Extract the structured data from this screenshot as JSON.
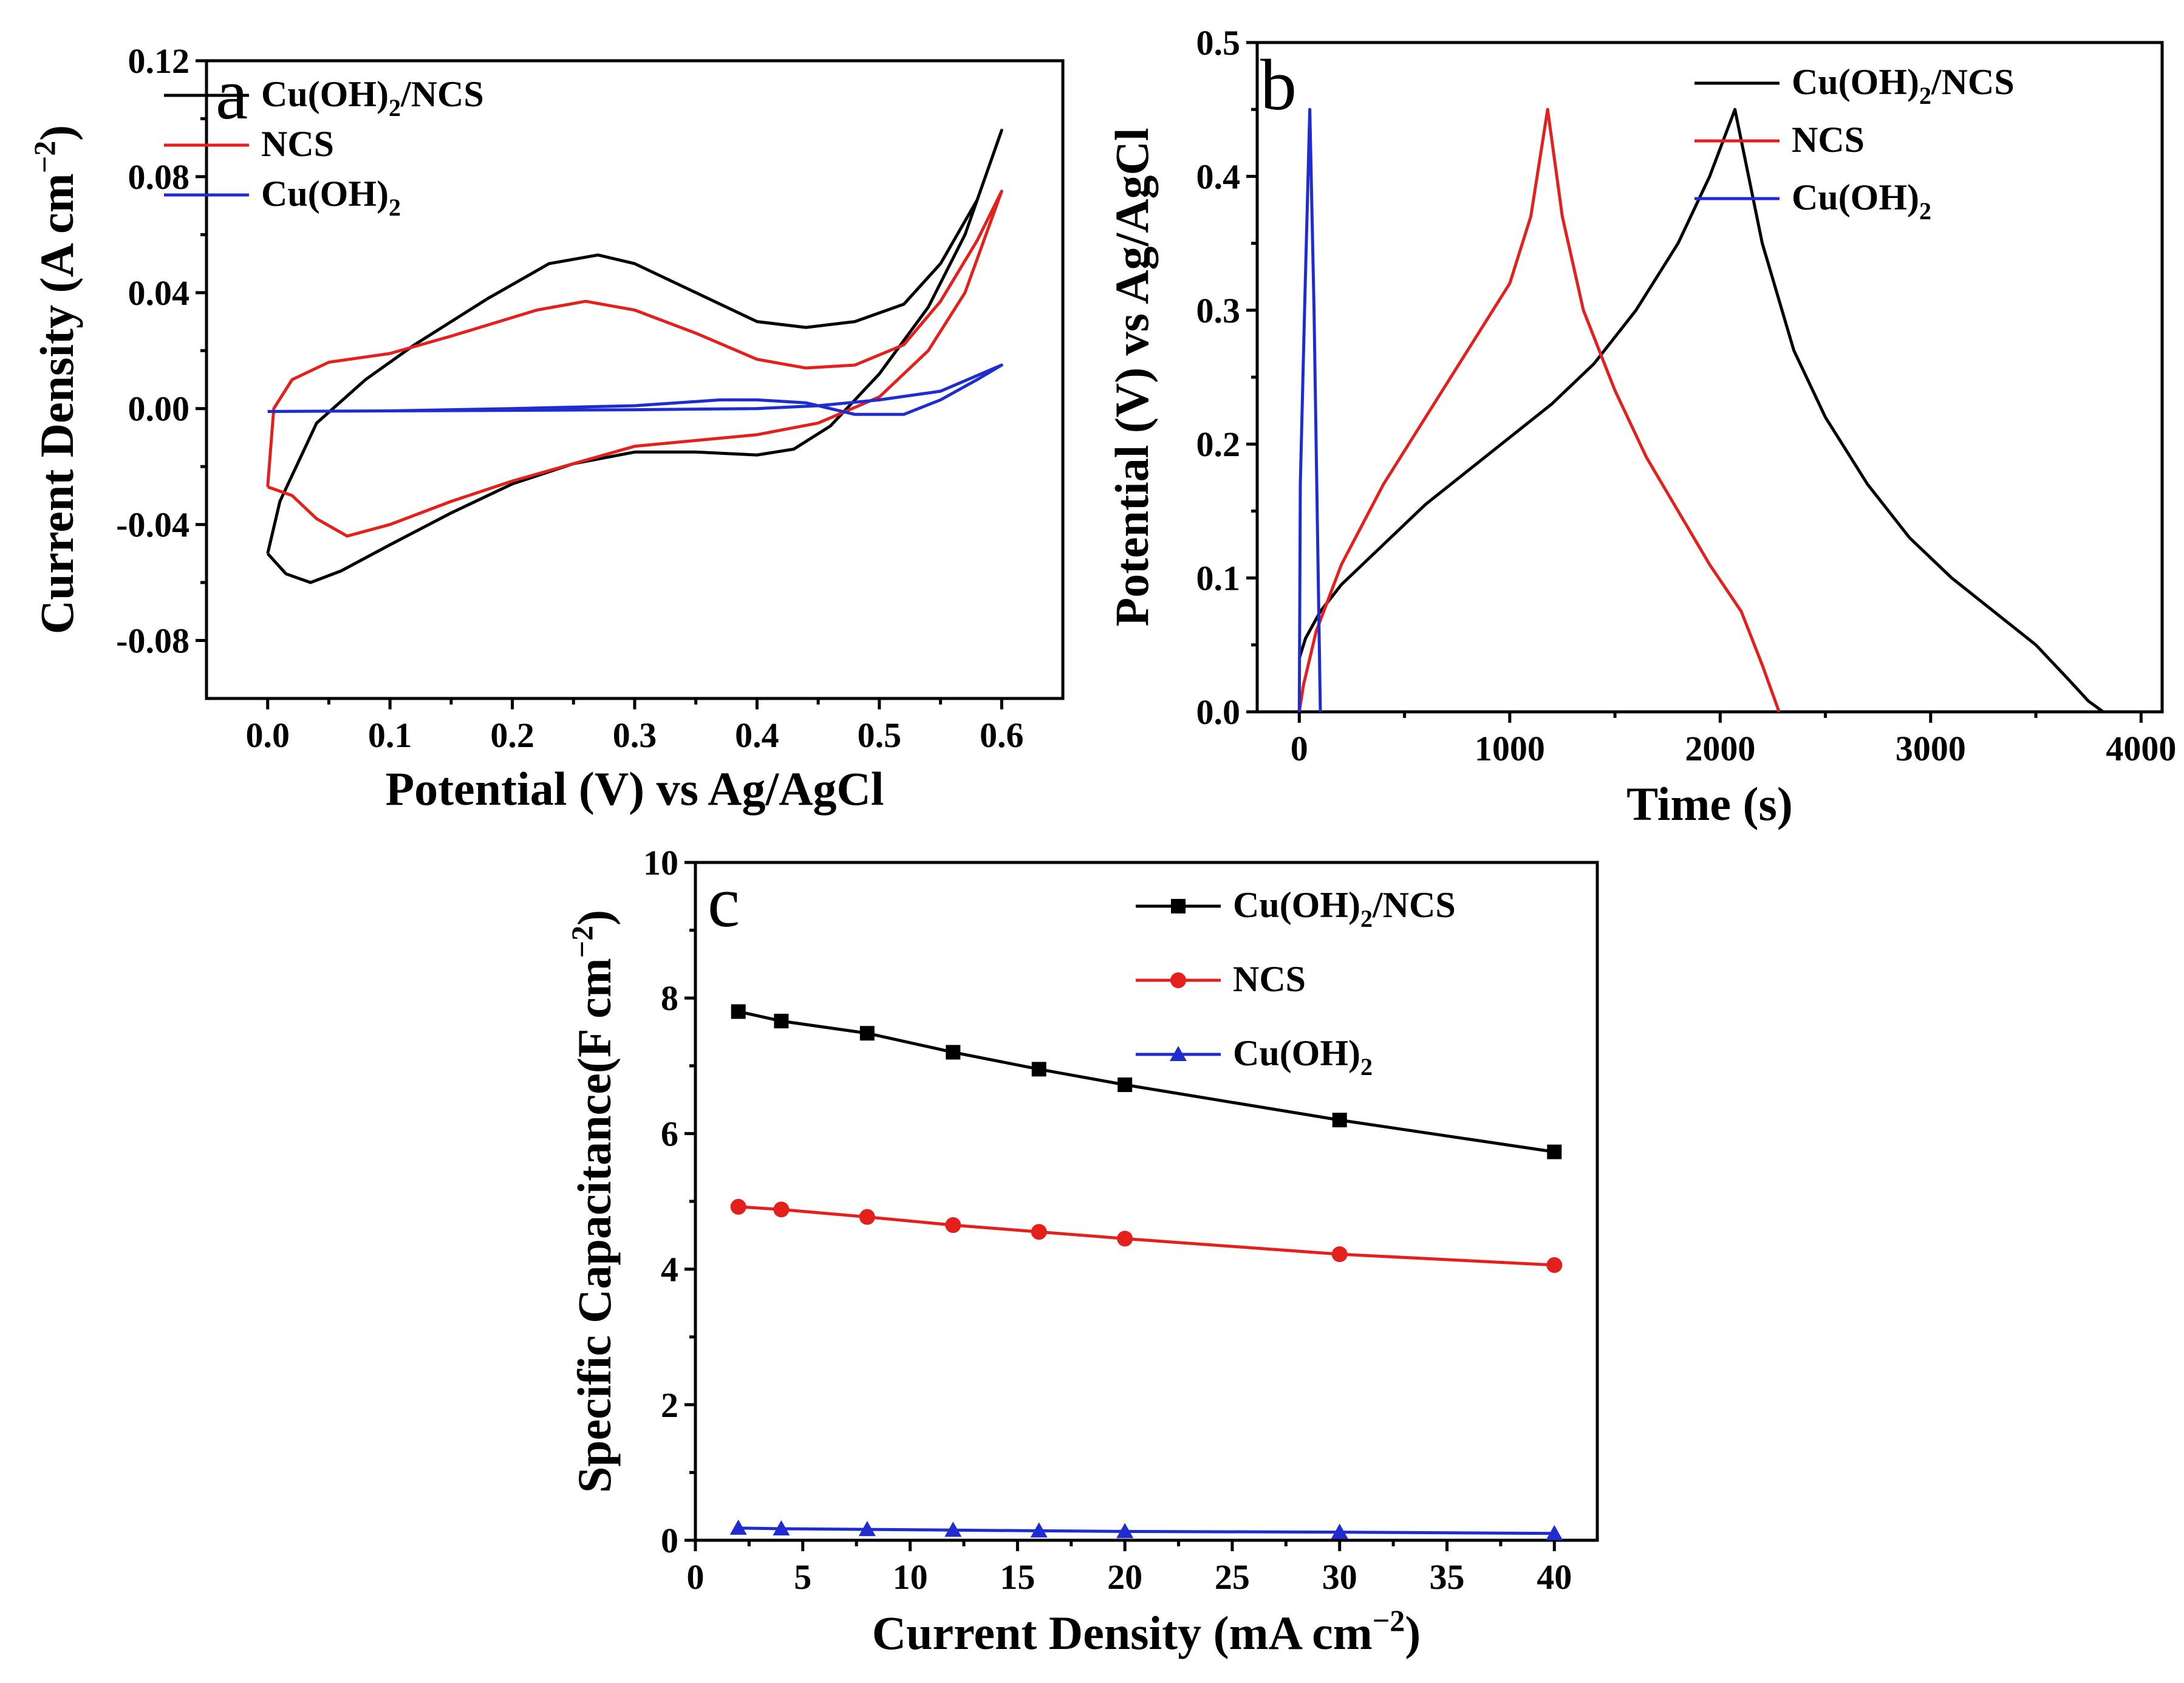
{
  "figure": {
    "description_letters": [
      "a",
      "b",
      "c"
    ]
  },
  "chart_data": [
    {
      "panel": "a",
      "type": "line",
      "title": "",
      "xlabel": "Potential (V) vs Ag/AgCl",
      "ylabel": "Current Density (A cm",
      "ylabel_sup": "−2",
      "ylabel_end": ")",
      "xlim": [
        -0.05,
        0.65
      ],
      "ylim": [
        -0.1,
        0.12
      ],
      "xticks": [
        0.0,
        0.1,
        0.2,
        0.3,
        0.4,
        0.5,
        0.6
      ],
      "xtick_labels": [
        "0.0",
        "0.1",
        "0.2",
        "0.3",
        "0.4",
        "0.5",
        "0.6"
      ],
      "yticks": [
        -0.08,
        -0.04,
        0.0,
        0.04,
        0.08,
        0.12
      ],
      "ytick_labels": [
        "-0.08",
        "-0.04",
        "0.00",
        "0.04",
        "0.08",
        "0.12"
      ],
      "legend": "top-left",
      "series": [
        {
          "name": "Cu(OH)2/NCS",
          "label_main": "Cu(OH)",
          "label_sub": "2",
          "label_tail": "/NCS",
          "color": "#000000",
          "points": [
            [
              0.0,
              -0.05
            ],
            [
              0.015,
              -0.057
            ],
            [
              0.035,
              -0.06
            ],
            [
              0.06,
              -0.056
            ],
            [
              0.1,
              -0.047
            ],
            [
              0.15,
              -0.036
            ],
            [
              0.2,
              -0.026
            ],
            [
              0.25,
              -0.019
            ],
            [
              0.3,
              -0.015
            ],
            [
              0.35,
              -0.015
            ],
            [
              0.4,
              -0.016
            ],
            [
              0.43,
              -0.014
            ],
            [
              0.46,
              -0.006
            ],
            [
              0.5,
              0.012
            ],
            [
              0.54,
              0.035
            ],
            [
              0.57,
              0.06
            ],
            [
              0.6,
              0.096
            ],
            [
              0.58,
              0.072
            ],
            [
              0.55,
              0.05
            ],
            [
              0.52,
              0.036
            ],
            [
              0.48,
              0.03
            ],
            [
              0.44,
              0.028
            ],
            [
              0.4,
              0.03
            ],
            [
              0.35,
              0.04
            ],
            [
              0.3,
              0.05
            ],
            [
              0.27,
              0.053
            ],
            [
              0.23,
              0.05
            ],
            [
              0.18,
              0.038
            ],
            [
              0.12,
              0.022
            ],
            [
              0.08,
              0.01
            ],
            [
              0.04,
              -0.005
            ],
            [
              0.01,
              -0.032
            ],
            [
              0.0,
              -0.05
            ]
          ]
        },
        {
          "name": "NCS",
          "label_main": "NCS",
          "label_sub": "",
          "label_tail": "",
          "color": "#e3201b",
          "points": [
            [
              0.0,
              -0.027
            ],
            [
              0.02,
              -0.03
            ],
            [
              0.04,
              -0.038
            ],
            [
              0.065,
              -0.044
            ],
            [
              0.1,
              -0.04
            ],
            [
              0.15,
              -0.032
            ],
            [
              0.2,
              -0.025
            ],
            [
              0.25,
              -0.019
            ],
            [
              0.3,
              -0.013
            ],
            [
              0.35,
              -0.011
            ],
            [
              0.4,
              -0.009
            ],
            [
              0.45,
              -0.005
            ],
            [
              0.5,
              0.004
            ],
            [
              0.54,
              0.02
            ],
            [
              0.57,
              0.04
            ],
            [
              0.6,
              0.075
            ],
            [
              0.58,
              0.058
            ],
            [
              0.55,
              0.037
            ],
            [
              0.52,
              0.022
            ],
            [
              0.48,
              0.015
            ],
            [
              0.44,
              0.014
            ],
            [
              0.4,
              0.017
            ],
            [
              0.35,
              0.026
            ],
            [
              0.3,
              0.034
            ],
            [
              0.26,
              0.037
            ],
            [
              0.22,
              0.034
            ],
            [
              0.15,
              0.025
            ],
            [
              0.1,
              0.019
            ],
            [
              0.05,
              0.016
            ],
            [
              0.02,
              0.01
            ],
            [
              0.005,
              0.0
            ],
            [
              0.0,
              -0.027
            ]
          ]
        },
        {
          "name": "Cu(OH)2",
          "label_main": "Cu(OH)",
          "label_sub": "2",
          "label_tail": "",
          "color": "#1f2ccf",
          "points": [
            [
              0.0,
              -0.001
            ],
            [
              0.1,
              -0.0008
            ],
            [
              0.2,
              -0.0006
            ],
            [
              0.3,
              -0.0004
            ],
            [
              0.4,
              0.0
            ],
            [
              0.45,
              0.001
            ],
            [
              0.5,
              0.003
            ],
            [
              0.55,
              0.006
            ],
            [
              0.6,
              0.015
            ],
            [
              0.58,
              0.01
            ],
            [
              0.55,
              0.003
            ],
            [
              0.52,
              -0.002
            ],
            [
              0.48,
              -0.002
            ],
            [
              0.44,
              0.002
            ],
            [
              0.4,
              0.003
            ],
            [
              0.37,
              0.003
            ],
            [
              0.3,
              0.001
            ],
            [
              0.2,
              0.0
            ],
            [
              0.1,
              -0.0008
            ],
            [
              0.0,
              -0.001
            ]
          ]
        }
      ]
    },
    {
      "panel": "b",
      "type": "line",
      "title": "",
      "xlabel": "Time (s)",
      "ylabel": "Potential (V) vs Ag/AgCl",
      "xlim": [
        -200,
        4100
      ],
      "ylim": [
        0.0,
        0.5
      ],
      "xticks": [
        0,
        1000,
        2000,
        3000,
        4000
      ],
      "xtick_labels": [
        "0",
        "1000",
        "2000",
        "3000",
        "4000"
      ],
      "yticks": [
        0.0,
        0.1,
        0.2,
        0.3,
        0.4,
        0.5
      ],
      "ytick_labels": [
        "0.0",
        "0.1",
        "0.2",
        "0.3",
        "0.4",
        "0.5"
      ],
      "legend": "top-right",
      "series": [
        {
          "name": "Cu(OH)2/NCS",
          "label_main": "Cu(OH)",
          "label_sub": "2",
          "label_tail": "/NCS",
          "color": "#000000",
          "points": [
            [
              0,
              0.04
            ],
            [
              30,
              0.055
            ],
            [
              100,
              0.075
            ],
            [
              200,
              0.095
            ],
            [
              400,
              0.125
            ],
            [
              600,
              0.155
            ],
            [
              800,
              0.18
            ],
            [
              1000,
              0.205
            ],
            [
              1200,
              0.23
            ],
            [
              1400,
              0.26
            ],
            [
              1600,
              0.3
            ],
            [
              1800,
              0.35
            ],
            [
              1950,
              0.4
            ],
            [
              2070,
              0.45
            ],
            [
              2200,
              0.35
            ],
            [
              2350,
              0.27
            ],
            [
              2500,
              0.22
            ],
            [
              2700,
              0.17
            ],
            [
              2900,
              0.13
            ],
            [
              3100,
              0.1
            ],
            [
              3300,
              0.075
            ],
            [
              3500,
              0.05
            ],
            [
              3650,
              0.025
            ],
            [
              3750,
              0.008
            ],
            [
              3820,
              0.0
            ]
          ]
        },
        {
          "name": "NCS",
          "label_main": "NCS",
          "label_sub": "",
          "label_tail": "",
          "color": "#e3201b",
          "points": [
            [
              0,
              0.0
            ],
            [
              20,
              0.02
            ],
            [
              80,
              0.06
            ],
            [
              200,
              0.11
            ],
            [
              400,
              0.17
            ],
            [
              600,
              0.22
            ],
            [
              800,
              0.27
            ],
            [
              1000,
              0.32
            ],
            [
              1100,
              0.37
            ],
            [
              1180,
              0.45
            ],
            [
              1250,
              0.37
            ],
            [
              1350,
              0.3
            ],
            [
              1500,
              0.24
            ],
            [
              1650,
              0.19
            ],
            [
              1800,
              0.15
            ],
            [
              1950,
              0.11
            ],
            [
              2100,
              0.075
            ],
            [
              2200,
              0.035
            ],
            [
              2280,
              0.0
            ]
          ]
        },
        {
          "name": "Cu(OH)2",
          "label_main": "Cu(OH)",
          "label_sub": "2",
          "label_tail": "",
          "color": "#1f2ccf",
          "points": [
            [
              0,
              0.0
            ],
            [
              5,
              0.17
            ],
            [
              25,
              0.3
            ],
            [
              50,
              0.45
            ],
            [
              70,
              0.3
            ],
            [
              90,
              0.1
            ],
            [
              100,
              0.0
            ]
          ]
        }
      ]
    },
    {
      "panel": "c",
      "type": "line",
      "title": "",
      "xlabel": "Current Density (mA cm",
      "xlabel_sup": "−2",
      "xlabel_end": ")",
      "ylabel": "Specific Capacitance(F cm",
      "ylabel_sup": "−2",
      "ylabel_end": ")",
      "xlim": [
        0,
        42
      ],
      "ylim": [
        0,
        10
      ],
      "xticks": [
        0,
        5,
        10,
        15,
        20,
        25,
        30,
        35,
        40
      ],
      "xtick_labels": [
        "0",
        "5",
        "10",
        "15",
        "20",
        "25",
        "30",
        "35",
        "40"
      ],
      "yticks": [
        0,
        2,
        4,
        6,
        8,
        10
      ],
      "ytick_labels": [
        "0",
        "2",
        "4",
        "6",
        "8",
        "10"
      ],
      "legend": "top-right",
      "x": [
        2,
        4,
        8,
        12,
        16,
        20,
        30,
        40
      ],
      "series": [
        {
          "name": "Cu(OH)2/NCS",
          "label_main": "Cu(OH)",
          "label_sub": "2",
          "label_tail": "/NCS",
          "color": "#000000",
          "marker": "square",
          "values": [
            7.8,
            7.66,
            7.48,
            7.2,
            6.95,
            6.72,
            6.2,
            5.73
          ]
        },
        {
          "name": "NCS",
          "label_main": "NCS",
          "label_sub": "",
          "label_tail": "",
          "color": "#e3201b",
          "marker": "circle",
          "values": [
            4.92,
            4.88,
            4.77,
            4.65,
            4.55,
            4.45,
            4.22,
            4.06
          ]
        },
        {
          "name": "Cu(OH)2",
          "label_main": "Cu(OH)",
          "label_sub": "2",
          "label_tail": "",
          "color": "#1f2ccf",
          "marker": "triangle",
          "values": [
            0.18,
            0.17,
            0.16,
            0.15,
            0.14,
            0.13,
            0.12,
            0.1
          ]
        }
      ]
    }
  ]
}
